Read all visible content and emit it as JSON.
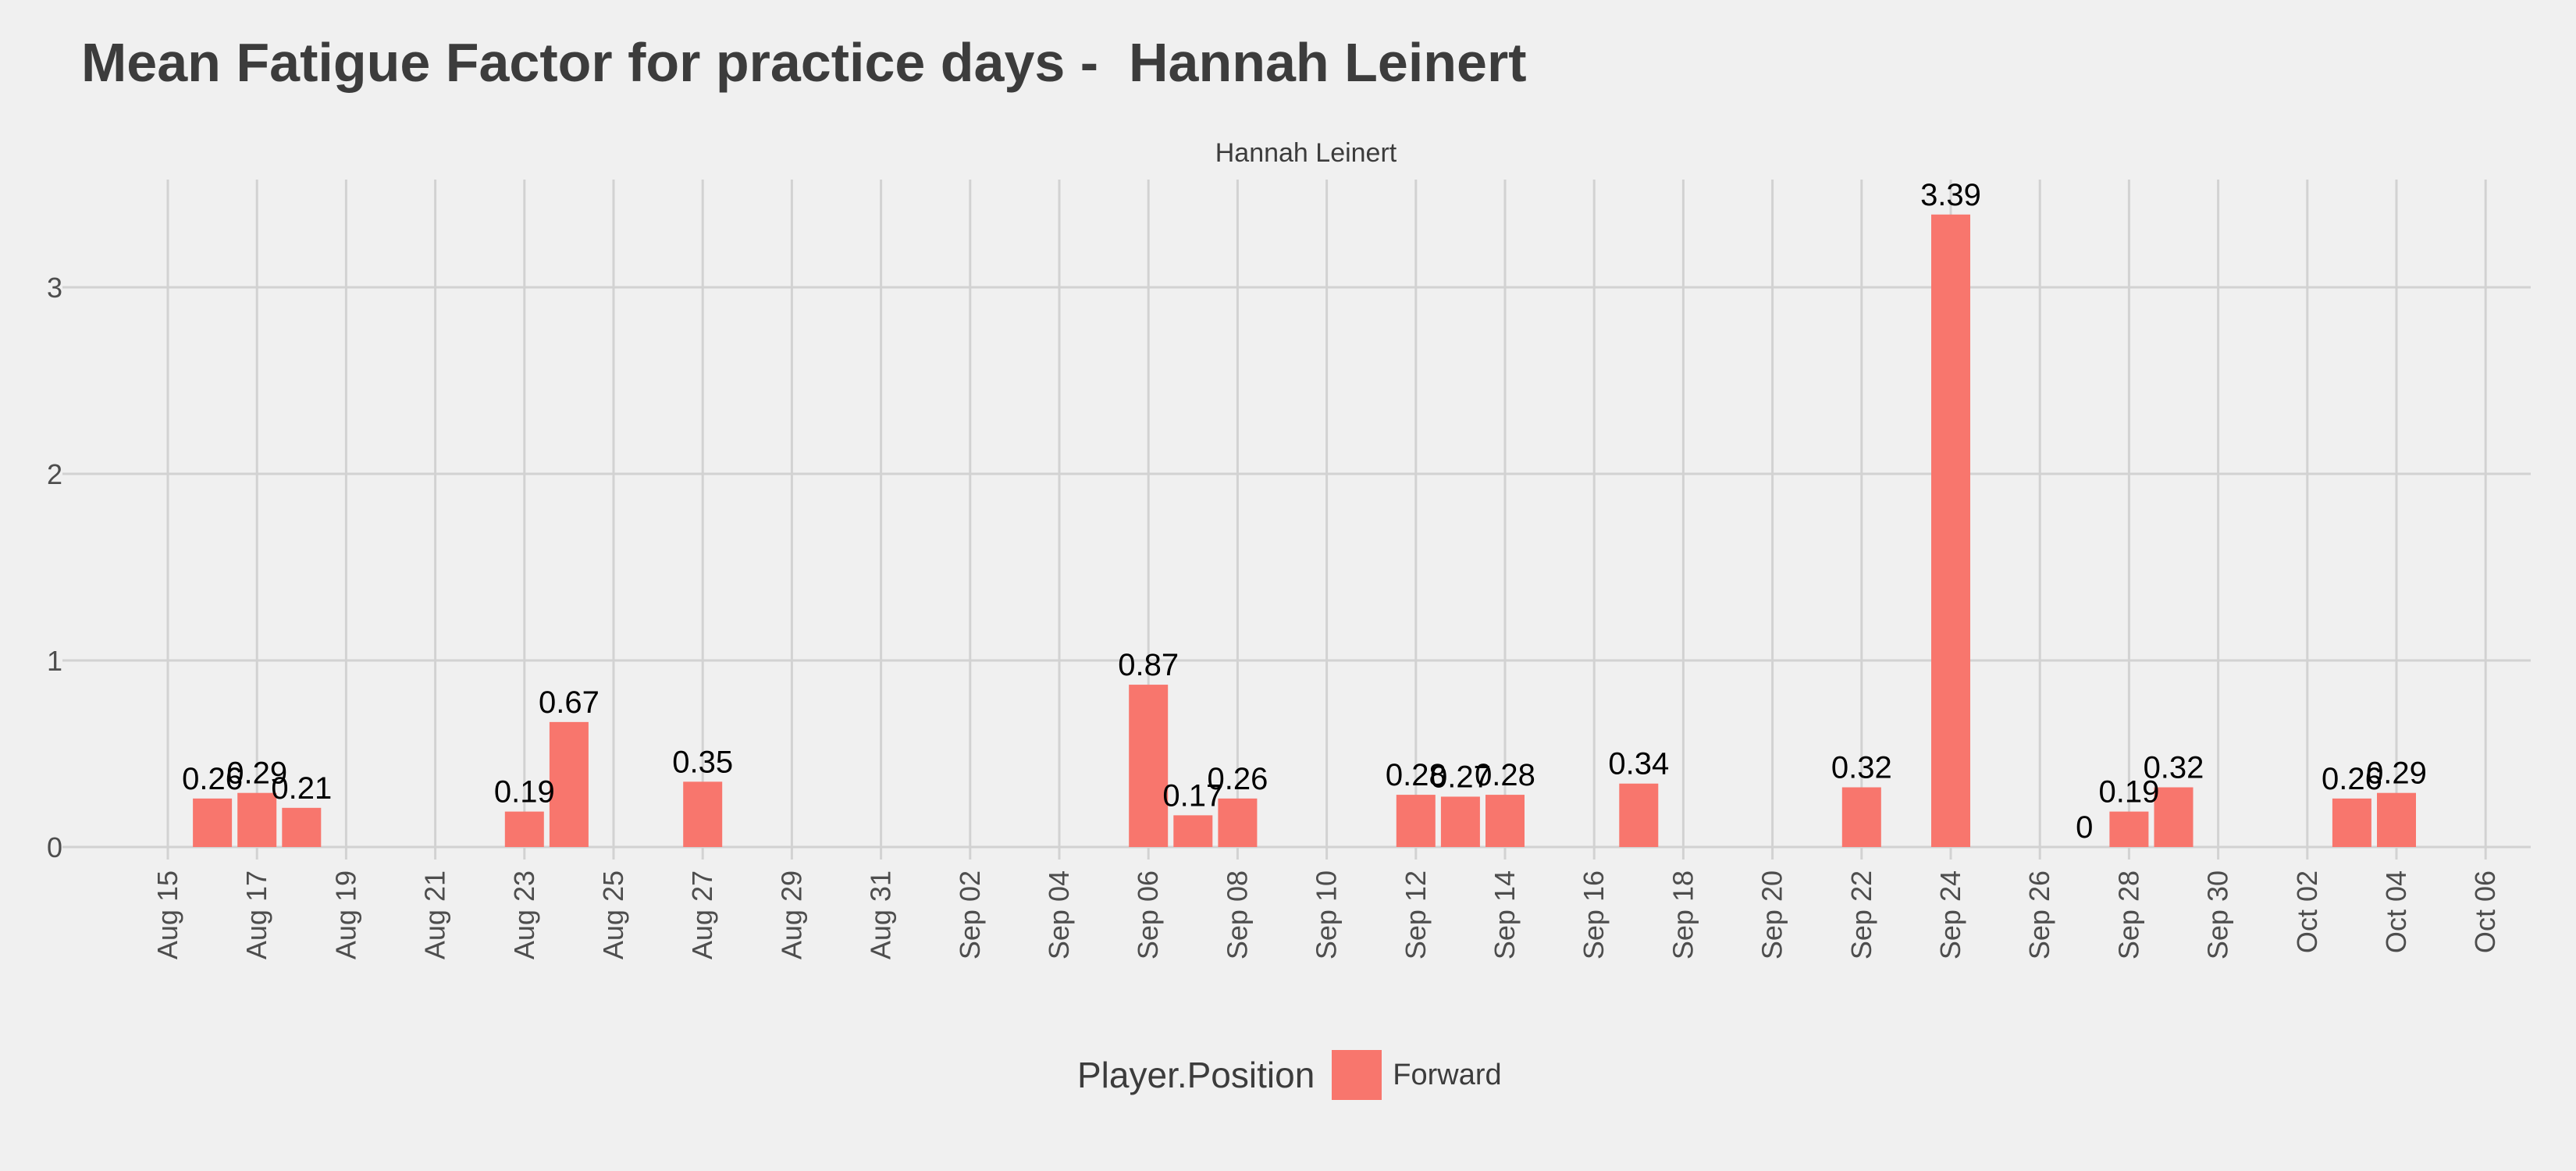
{
  "title": "Mean Fatigue Factor for practice days -  Hannah Leinert",
  "legend": {
    "title": "Player.Position",
    "label": "Forward",
    "color": "#f8766d"
  },
  "chart_data": {
    "type": "bar",
    "facet_label": "Hannah Leinert",
    "xlabel": "",
    "ylabel": "",
    "x_range": [
      "2025-08-14",
      "2025-10-07"
    ],
    "ylim": [
      0,
      3.5
    ],
    "y_ticks": [
      0,
      1,
      2,
      3
    ],
    "x_ticks": [
      {
        "date": "2025-08-15",
        "label": "Aug 15"
      },
      {
        "date": "2025-08-17",
        "label": "Aug 17"
      },
      {
        "date": "2025-08-19",
        "label": "Aug 19"
      },
      {
        "date": "2025-08-21",
        "label": "Aug 21"
      },
      {
        "date": "2025-08-23",
        "label": "Aug 23"
      },
      {
        "date": "2025-08-25",
        "label": "Aug 25"
      },
      {
        "date": "2025-08-27",
        "label": "Aug 27"
      },
      {
        "date": "2025-08-29",
        "label": "Aug 29"
      },
      {
        "date": "2025-08-31",
        "label": "Aug 31"
      },
      {
        "date": "2025-09-02",
        "label": "Sep 02"
      },
      {
        "date": "2025-09-04",
        "label": "Sep 04"
      },
      {
        "date": "2025-09-06",
        "label": "Sep 06"
      },
      {
        "date": "2025-09-08",
        "label": "Sep 08"
      },
      {
        "date": "2025-09-10",
        "label": "Sep 10"
      },
      {
        "date": "2025-09-12",
        "label": "Sep 12"
      },
      {
        "date": "2025-09-14",
        "label": "Sep 14"
      },
      {
        "date": "2025-09-16",
        "label": "Sep 16"
      },
      {
        "date": "2025-09-18",
        "label": "Sep 18"
      },
      {
        "date": "2025-09-20",
        "label": "Sep 20"
      },
      {
        "date": "2025-09-22",
        "label": "Sep 22"
      },
      {
        "date": "2025-09-24",
        "label": "Sep 24"
      },
      {
        "date": "2025-09-26",
        "label": "Sep 26"
      },
      {
        "date": "2025-09-28",
        "label": "Sep 28"
      },
      {
        "date": "2025-09-30",
        "label": "Sep 30"
      },
      {
        "date": "2025-10-02",
        "label": "Oct 02"
      },
      {
        "date": "2025-10-04",
        "label": "Oct 04"
      },
      {
        "date": "2025-10-06",
        "label": "Oct 06"
      }
    ],
    "grid": true,
    "legend_position": "bottom",
    "series": [
      {
        "name": "Forward",
        "color": "#f8766d",
        "points": [
          {
            "date": "2025-08-16",
            "value": 0.26,
            "label": "0.26"
          },
          {
            "date": "2025-08-17",
            "value": 0.29,
            "label": "0.29"
          },
          {
            "date": "2025-08-18",
            "value": 0.21,
            "label": "0.21"
          },
          {
            "date": "2025-08-23",
            "value": 0.19,
            "label": "0.19"
          },
          {
            "date": "2025-08-24",
            "value": 0.67,
            "label": "0.67"
          },
          {
            "date": "2025-08-27",
            "value": 0.35,
            "label": "0.35"
          },
          {
            "date": "2025-09-06",
            "value": 0.87,
            "label": "0.87"
          },
          {
            "date": "2025-09-07",
            "value": 0.17,
            "label": "0.17"
          },
          {
            "date": "2025-09-08",
            "value": 0.26,
            "label": "0.26"
          },
          {
            "date": "2025-09-12",
            "value": 0.28,
            "label": "0.28"
          },
          {
            "date": "2025-09-13",
            "value": 0.27,
            "label": "0.27"
          },
          {
            "date": "2025-09-14",
            "value": 0.28,
            "label": "0.28"
          },
          {
            "date": "2025-09-17",
            "value": 0.34,
            "label": "0.34"
          },
          {
            "date": "2025-09-22",
            "value": 0.32,
            "label": "0.32"
          },
          {
            "date": "2025-09-24",
            "value": 3.39,
            "label": "3.39"
          },
          {
            "date": "2025-09-27",
            "value": 0,
            "label": "0"
          },
          {
            "date": "2025-09-28",
            "value": 0.19,
            "label": "0.19"
          },
          {
            "date": "2025-09-29",
            "value": 0.32,
            "label": "0.32"
          },
          {
            "date": "2025-10-03",
            "value": 0.26,
            "label": "0.26"
          },
          {
            "date": "2025-10-04",
            "value": 0.29,
            "label": "0.29"
          }
        ]
      }
    ]
  }
}
